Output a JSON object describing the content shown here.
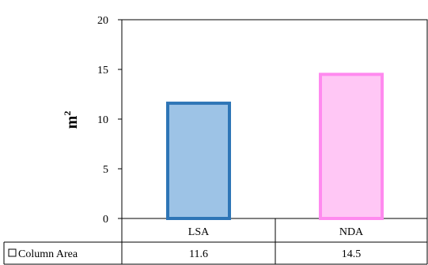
{
  "chart_data": {
    "type": "bar",
    "categories": [
      "LSA",
      "NDA"
    ],
    "series": [
      {
        "name": "Column Area",
        "values": [
          11.6,
          14.5
        ]
      }
    ],
    "value_labels": [
      "11.6",
      "14.5"
    ],
    "ylabel": "m",
    "ylabel_superscript": "2",
    "ylim": [
      0,
      20
    ],
    "yticks": [
      0,
      5,
      10,
      15,
      20
    ],
    "grid": false,
    "legend": "data-table-left",
    "bar_fills": [
      "#9dc3e6",
      "#ffc7f5"
    ],
    "bar_strokes": [
      "#2e75b6",
      "#ff8aef"
    ]
  }
}
